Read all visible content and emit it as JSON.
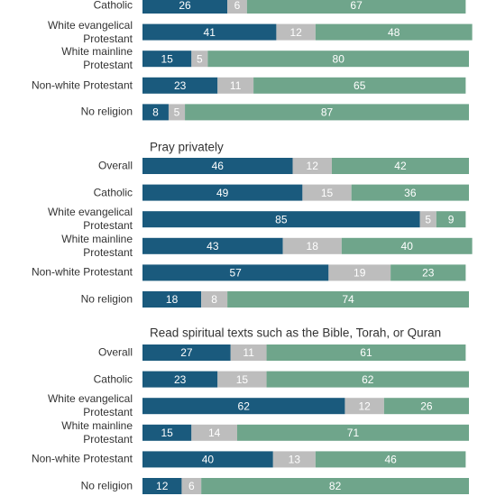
{
  "chart_data": [
    {
      "type": "stacked-bar",
      "categories": [
        "Catholic",
        "White evangelical\nProtestant",
        "White mainline\nProtestant",
        "Non-white Protestant",
        "No religion"
      ],
      "series": [
        {
          "color": "#1a5a7d",
          "values": [
            26,
            41,
            15,
            23,
            8
          ]
        },
        {
          "color": "#bdbdbd",
          "values": [
            6,
            12,
            5,
            11,
            5
          ]
        },
        {
          "color": "#6fa58b",
          "values": [
            67,
            48,
            80,
            65,
            87
          ]
        }
      ]
    },
    {
      "type": "stacked-bar",
      "title": "Pray privately",
      "categories": [
        "Overall",
        "Catholic",
        "White evangelical\nProtestant",
        "White mainline\nProtestant",
        "Non-white Protestant",
        "No religion"
      ],
      "series": [
        {
          "color": "#1a5a7d",
          "values": [
            46,
            49,
            85,
            43,
            57,
            18
          ]
        },
        {
          "color": "#bdbdbd",
          "values": [
            12,
            15,
            5,
            18,
            19,
            8
          ]
        },
        {
          "color": "#6fa58b",
          "values": [
            42,
            36,
            9,
            40,
            23,
            74
          ]
        }
      ]
    },
    {
      "type": "stacked-bar",
      "title": "Read spiritual texts such as the Bible, Torah, or Quran",
      "categories": [
        "Overall",
        "Catholic",
        "White evangelical\nProtestant",
        "White mainline\nProtestant",
        "Non-white Protestant",
        "No religion"
      ],
      "series": [
        {
          "color": "#1a5a7d",
          "values": [
            27,
            23,
            62,
            15,
            40,
            12
          ]
        },
        {
          "color": "#bdbdbd",
          "values": [
            11,
            15,
            12,
            14,
            13,
            6
          ]
        },
        {
          "color": "#6fa58b",
          "values": [
            61,
            62,
            26,
            71,
            46,
            82
          ]
        }
      ]
    }
  ]
}
